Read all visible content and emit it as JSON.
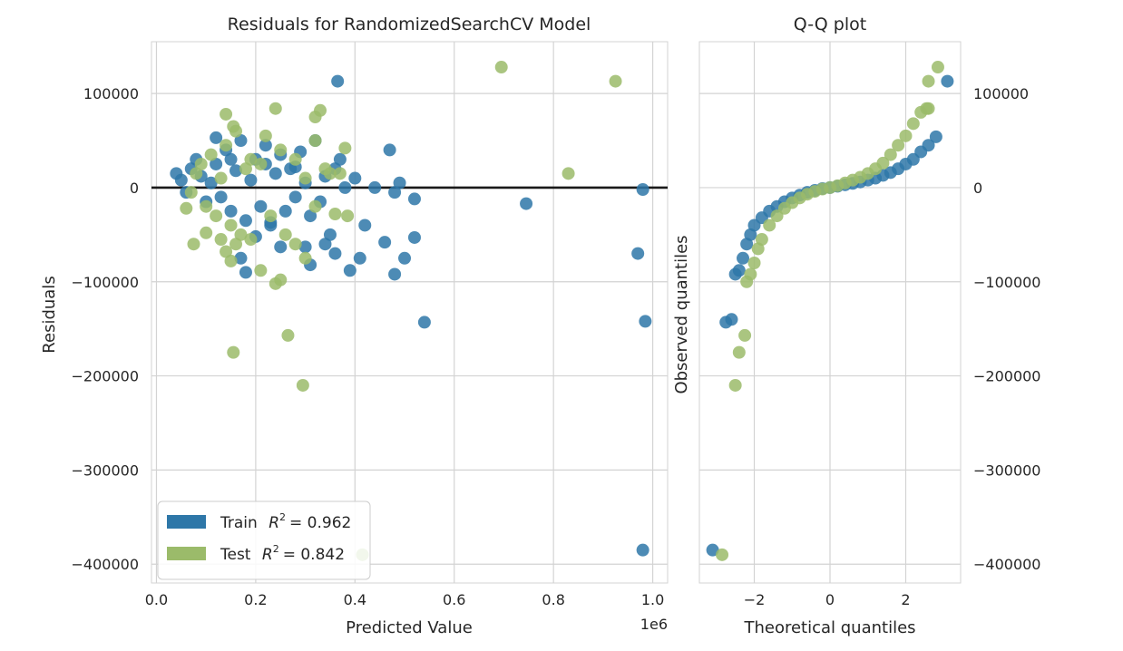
{
  "figure": {
    "colors": {
      "train": "#2e77a8",
      "test": "#9bbb6a",
      "axes_bg": "#ffffff",
      "grid": "#d3d3d3",
      "zero_line": "#1a1a1a"
    }
  },
  "chart_data": [
    {
      "type": "scatter",
      "title": "Residuals for RandomizedSearchCV Model",
      "xlabel": "Predicted Value",
      "ylabel": "Residuals",
      "x_offset_label": "1e6",
      "xlim": [
        -0.01,
        1.03
      ],
      "ylim": [
        -420000,
        155000
      ],
      "xticks": [
        0.0,
        0.2,
        0.4,
        0.6,
        0.8,
        1.0
      ],
      "xticklabels": [
        "0.0",
        "0.2",
        "0.4",
        "0.6",
        "0.8",
        "1.0"
      ],
      "yticks": [
        100000,
        0,
        -100000,
        -200000,
        -300000,
        -400000
      ],
      "yticklabels": [
        "100000",
        "0",
        "−100000",
        "−200000",
        "−300000",
        "−400000"
      ],
      "grid": true,
      "hline": 0,
      "legend": {
        "placement": "lower-left",
        "entries": [
          {
            "series": "Train",
            "label_prefix": "Train",
            "r2_text": "= 0.962"
          },
          {
            "series": "Test",
            "label_prefix": "Test",
            "r2_text": "= 0.842"
          }
        ]
      },
      "series": [
        {
          "name": "Train",
          "points": [
            [
              0.04,
              15000
            ],
            [
              0.05,
              8000
            ],
            [
              0.06,
              -5000
            ],
            [
              0.07,
              20000
            ],
            [
              0.08,
              30000
            ],
            [
              0.09,
              12000
            ],
            [
              0.1,
              -15000
            ],
            [
              0.11,
              5000
            ],
            [
              0.12,
              25000
            ],
            [
              0.13,
              -10000
            ],
            [
              0.14,
              40000
            ],
            [
              0.15,
              -25000
            ],
            [
              0.16,
              18000
            ],
            [
              0.17,
              50000
            ],
            [
              0.18,
              -35000
            ],
            [
              0.19,
              8000
            ],
            [
              0.2,
              30000
            ],
            [
              0.21,
              -20000
            ],
            [
              0.22,
              45000
            ],
            [
              0.23,
              -40000
            ],
            [
              0.24,
              15000
            ],
            [
              0.25,
              35000
            ],
            [
              0.26,
              -25000
            ],
            [
              0.27,
              20000
            ],
            [
              0.28,
              -10000
            ],
            [
              0.29,
              38000
            ],
            [
              0.3,
              5000
            ],
            [
              0.31,
              -30000
            ],
            [
              0.32,
              50000
            ],
            [
              0.33,
              -15000
            ],
            [
              0.34,
              12000
            ],
            [
              0.35,
              -50000
            ],
            [
              0.36,
              20000
            ],
            [
              0.37,
              30000
            ],
            [
              0.38,
              0
            ],
            [
              0.4,
              10000
            ],
            [
              0.42,
              -40000
            ],
            [
              0.44,
              0
            ],
            [
              0.46,
              -58000
            ],
            [
              0.47,
              40000
            ],
            [
              0.48,
              -5000
            ],
            [
              0.49,
              5000
            ],
            [
              0.5,
              -75000
            ],
            [
              0.52,
              -12000
            ],
            [
              0.52,
              -53000
            ],
            [
              0.12,
              53000
            ],
            [
              0.15,
              30000
            ],
            [
              0.22,
              25000
            ],
            [
              0.28,
              22000
            ],
            [
              0.3,
              -63000
            ],
            [
              0.31,
              -82000
            ],
            [
              0.34,
              -60000
            ],
            [
              0.36,
              -70000
            ],
            [
              0.39,
              -88000
            ],
            [
              0.41,
              -75000
            ],
            [
              0.48,
              -92000
            ],
            [
              0.18,
              -90000
            ],
            [
              0.23,
              -37000
            ],
            [
              0.25,
              -63000
            ],
            [
              0.2,
              -52000
            ],
            [
              0.17,
              -75000
            ],
            [
              0.365,
              113000
            ],
            [
              0.54,
              -143000
            ],
            [
              0.745,
              -17000
            ],
            [
              0.97,
              -70000
            ],
            [
              0.98,
              -2000
            ],
            [
              0.985,
              -142000
            ],
            [
              0.98,
              -385000
            ]
          ]
        },
        {
          "name": "Test",
          "points": [
            [
              0.07,
              -5000
            ],
            [
              0.08,
              15000
            ],
            [
              0.09,
              25000
            ],
            [
              0.1,
              -20000
            ],
            [
              0.11,
              35000
            ],
            [
              0.12,
              -30000
            ],
            [
              0.13,
              10000
            ],
            [
              0.14,
              45000
            ],
            [
              0.15,
              -40000
            ],
            [
              0.16,
              60000
            ],
            [
              0.14,
              78000
            ],
            [
              0.155,
              65000
            ],
            [
              0.17,
              -50000
            ],
            [
              0.18,
              20000
            ],
            [
              0.19,
              30000
            ],
            [
              0.21,
              25000
            ],
            [
              0.22,
              55000
            ],
            [
              0.23,
              -30000
            ],
            [
              0.24,
              84000
            ],
            [
              0.25,
              40000
            ],
            [
              0.26,
              -50000
            ],
            [
              0.28,
              30000
            ],
            [
              0.3,
              10000
            ],
            [
              0.32,
              -20000
            ],
            [
              0.32,
              75000
            ],
            [
              0.33,
              82000
            ],
            [
              0.34,
              20000
            ],
            [
              0.35,
              15000
            ],
            [
              0.36,
              -28000
            ],
            [
              0.37,
              15000
            ],
            [
              0.38,
              42000
            ],
            [
              0.06,
              -22000
            ],
            [
              0.075,
              -60000
            ],
            [
              0.1,
              -48000
            ],
            [
              0.13,
              -55000
            ],
            [
              0.14,
              -68000
            ],
            [
              0.15,
              -78000
            ],
            [
              0.16,
              -60000
            ],
            [
              0.21,
              -88000
            ],
            [
              0.25,
              -98000
            ],
            [
              0.24,
              -102000
            ],
            [
              0.28,
              -60000
            ],
            [
              0.3,
              -75000
            ],
            [
              0.19,
              -55000
            ],
            [
              0.155,
              -175000
            ],
            [
              0.265,
              -157000
            ],
            [
              0.295,
              -210000
            ],
            [
              0.32,
              50000
            ],
            [
              0.385,
              -30000
            ],
            [
              0.415,
              -390000
            ],
            [
              0.695,
              128000
            ],
            [
              0.83,
              15000
            ],
            [
              0.925,
              113000
            ]
          ]
        }
      ]
    },
    {
      "type": "scatter",
      "title": "Q-Q plot",
      "xlabel": "Theoretical quantiles",
      "ylabel": "Observed quantiles",
      "xlim": [
        -3.45,
        3.45
      ],
      "ylim": [
        -420000,
        155000
      ],
      "xticks": [
        -2,
        0,
        2
      ],
      "xticklabels": [
        "−2",
        "0",
        "2"
      ],
      "yticks": [
        100000,
        0,
        -100000,
        -200000,
        -300000,
        -400000
      ],
      "yticklabels": [
        "100000",
        "0",
        "−100000",
        "−200000",
        "−300000",
        "−400000"
      ],
      "yaxis_side": "right",
      "grid": true,
      "series": [
        {
          "name": "Train",
          "points": [
            [
              -3.1,
              -385000
            ],
            [
              -2.75,
              -143000
            ],
            [
              -2.6,
              -140000
            ],
            [
              -2.5,
              -92000
            ],
            [
              -2.4,
              -88000
            ],
            [
              -2.3,
              -75000
            ],
            [
              -2.2,
              -60000
            ],
            [
              -2.1,
              -50000
            ],
            [
              -2.0,
              -40000
            ],
            [
              -1.8,
              -32000
            ],
            [
              -1.6,
              -25000
            ],
            [
              -1.4,
              -20000
            ],
            [
              -1.2,
              -15000
            ],
            [
              -1.0,
              -11000
            ],
            [
              -0.8,
              -8000
            ],
            [
              -0.6,
              -5000
            ],
            [
              -0.4,
              -3000
            ],
            [
              -0.2,
              -1000
            ],
            [
              0.0,
              0
            ],
            [
              0.2,
              1500
            ],
            [
              0.4,
              3000
            ],
            [
              0.6,
              4500
            ],
            [
              0.8,
              6000
            ],
            [
              1.0,
              8000
            ],
            [
              1.2,
              10000
            ],
            [
              1.4,
              13000
            ],
            [
              1.6,
              16000
            ],
            [
              1.8,
              20000
            ],
            [
              2.0,
              25000
            ],
            [
              2.2,
              30000
            ],
            [
              2.4,
              38000
            ],
            [
              2.6,
              45000
            ],
            [
              2.8,
              54000
            ],
            [
              3.1,
              113000
            ]
          ]
        },
        {
          "name": "Test",
          "points": [
            [
              -2.85,
              -390000
            ],
            [
              -2.5,
              -210000
            ],
            [
              -2.4,
              -175000
            ],
            [
              -2.25,
              -157000
            ],
            [
              -2.2,
              -100000
            ],
            [
              -2.1,
              -92000
            ],
            [
              -2.0,
              -80000
            ],
            [
              -1.9,
              -65000
            ],
            [
              -1.8,
              -55000
            ],
            [
              -1.6,
              -40000
            ],
            [
              -1.4,
              -30000
            ],
            [
              -1.2,
              -22000
            ],
            [
              -1.0,
              -16000
            ],
            [
              -0.8,
              -11000
            ],
            [
              -0.6,
              -7000
            ],
            [
              -0.4,
              -4000
            ],
            [
              -0.2,
              -1500
            ],
            [
              0.0,
              0
            ],
            [
              0.2,
              2000
            ],
            [
              0.4,
              5000
            ],
            [
              0.6,
              8000
            ],
            [
              0.8,
              11000
            ],
            [
              1.0,
              15000
            ],
            [
              1.2,
              20000
            ],
            [
              1.4,
              26000
            ],
            [
              1.6,
              35000
            ],
            [
              1.8,
              45000
            ],
            [
              2.0,
              55000
            ],
            [
              2.2,
              68000
            ],
            [
              2.4,
              80000
            ],
            [
              2.55,
              84000
            ],
            [
              2.6,
              84000
            ],
            [
              2.6,
              113000
            ],
            [
              2.85,
              128000
            ]
          ]
        }
      ]
    }
  ]
}
